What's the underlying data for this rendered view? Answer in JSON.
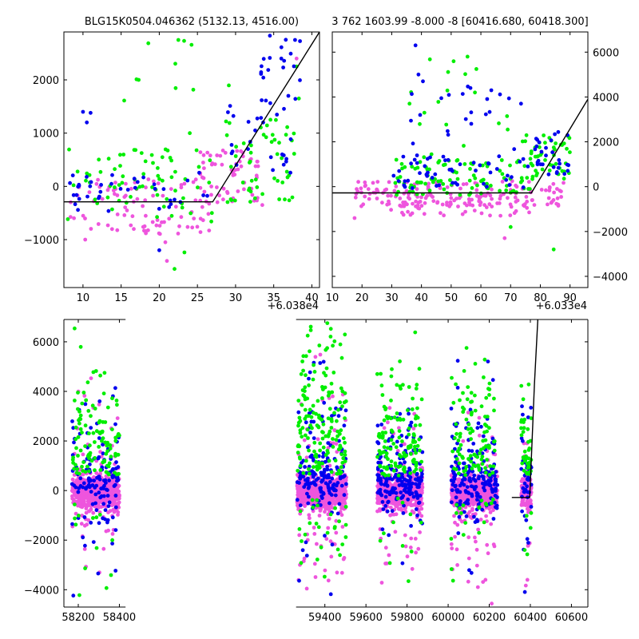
{
  "colors": {
    "green": "#00ee00",
    "blue": "#0000ee",
    "pink": "#ee55dd",
    "model": "#000000"
  },
  "chart_data": [
    {
      "id": "top-left",
      "type": "scatter",
      "title": "BLG15K0504.046362 (5132.13, 4516.00)",
      "x_offset_label": "+6.038e4",
      "xlim": [
        7.5,
        41
      ],
      "ylim": [
        -1900,
        2900
      ],
      "xticks": [
        10,
        15,
        20,
        25,
        30,
        35,
        40
      ],
      "yticks": [
        -1000,
        0,
        1000,
        2000
      ],
      "ytick_side": "left",
      "model_line": [
        [
          7.5,
          -290
        ],
        [
          27,
          -290
        ],
        [
          41,
          2900
        ]
      ],
      "series": [
        {
          "color": "green",
          "seed": 11,
          "count": 130,
          "clusters": [
            {
              "x": [
                8,
                27
              ],
              "y": [
                -700,
                700
              ],
              "w": 0.45
            },
            {
              "x": [
                28,
                38
              ],
              "y": [
                -300,
                1300
              ],
              "w": 0.45
            },
            {
              "x": [
                15,
                30
              ],
              "y": [
                1200,
                2800
              ],
              "w": 0.1
            }
          ],
          "fixed": [
            [
              22.5,
              2750
            ],
            [
              17.3,
              2000
            ],
            [
              24.0,
              1000
            ],
            [
              38.3,
              1650
            ],
            [
              23.3,
              -1240
            ],
            [
              22.0,
              -1550
            ],
            [
              38.0,
              2250
            ]
          ]
        },
        {
          "color": "blue",
          "seed": 23,
          "count": 85,
          "clusters": [
            {
              "x": [
                8,
                27
              ],
              "y": [
                -500,
                300
              ],
              "w": 0.45
            },
            {
              "x": [
                29,
                38
              ],
              "y": [
                200,
                1600
              ],
              "w": 0.4
            },
            {
              "x": [
                33,
                38.5
              ],
              "y": [
                1600,
                2800
              ],
              "w": 0.15
            }
          ],
          "fixed": [
            [
              10.0,
              1400
            ],
            [
              10.5,
              1200
            ],
            [
              11.0,
              1380
            ],
            [
              34.5,
              2830
            ],
            [
              37.8,
              2750
            ],
            [
              36.0,
              2400
            ],
            [
              20.0,
              -1200
            ]
          ]
        },
        {
          "color": "pink",
          "seed": 37,
          "count": 150,
          "clusters": [
            {
              "x": [
                8,
                27
              ],
              "y": [
                -900,
                150
              ],
              "w": 0.6
            },
            {
              "x": [
                25,
                33
              ],
              "y": [
                -300,
                700
              ],
              "w": 0.4
            }
          ],
          "fixed": [
            [
              21.0,
              -1400
            ],
            [
              10.3,
              -1000
            ],
            [
              20.8,
              -1050
            ],
            [
              33.5,
              -350
            ],
            [
              38.0,
              2400
            ]
          ]
        }
      ]
    },
    {
      "id": "top-right",
      "type": "scatter",
      "title": "3 762 1603.99 -8.000 -8 [60416.680, 60418.300]",
      "x_offset_label": "+6.033e4",
      "xlim": [
        10,
        96
      ],
      "ylim": [
        -4500,
        6900
      ],
      "xticks": [
        10,
        20,
        30,
        40,
        50,
        60,
        70,
        80,
        90
      ],
      "yticks": [
        -4000,
        -2000,
        0,
        2000,
        4000,
        6000
      ],
      "ytick_side": "right",
      "model_line": [
        [
          10,
          -280
        ],
        [
          77,
          -280
        ],
        [
          96,
          3900
        ]
      ],
      "series": [
        {
          "color": "green",
          "seed": 41,
          "count": 170,
          "clusters": [
            {
              "x": [
                30,
                77
              ],
              "y": [
                -400,
                1200
              ],
              "w": 0.6
            },
            {
              "x": [
                74,
                90
              ],
              "y": [
                300,
                2300
              ],
              "w": 0.3
            },
            {
              "x": [
                35,
                70
              ],
              "y": [
                1200,
                6000
              ],
              "w": 0.1
            }
          ],
          "fixed": [
            [
              36.0,
              3700
            ],
            [
              41.0,
              3300
            ],
            [
              55.5,
              5800
            ],
            [
              58.0,
              4200
            ],
            [
              84.5,
              -2800
            ],
            [
              70.0,
              -1800
            ]
          ]
        },
        {
          "color": "blue",
          "seed": 53,
          "count": 100,
          "clusters": [
            {
              "x": [
                30,
                78
              ],
              "y": [
                -100,
                1400
              ],
              "w": 0.55
            },
            {
              "x": [
                78,
                90
              ],
              "y": [
                500,
                2600
              ],
              "w": 0.25
            },
            {
              "x": [
                33,
                72
              ],
              "y": [
                1400,
                4500
              ],
              "w": 0.2
            }
          ],
          "fixed": [
            [
              38.0,
              6300
            ],
            [
              39.0,
              5000
            ],
            [
              40.5,
              4700
            ],
            [
              56.5,
              4400
            ],
            [
              63.5,
              4300
            ],
            [
              73.5,
              3700
            ]
          ]
        },
        {
          "color": "pink",
          "seed": 67,
          "count": 210,
          "clusters": [
            {
              "x": [
                17,
                88
              ],
              "y": [
                -900,
                250
              ],
              "w": 0.8
            },
            {
              "x": [
                28,
                78
              ],
              "y": [
                -1300,
                -400
              ],
              "w": 0.2
            }
          ],
          "fixed": [
            [
              17.5,
              -1400
            ],
            [
              68.0,
              -2300
            ],
            [
              84.5,
              1600
            ]
          ]
        }
      ]
    },
    {
      "id": "bottom",
      "type": "scatter",
      "title": "",
      "xlim": [
        58130,
        60680
      ],
      "ylim": [
        -4700,
        6900
      ],
      "xticks": [
        58200,
        58400,
        59400,
        59600,
        59800,
        60000,
        60200,
        60400,
        60600
      ],
      "yticks": [
        -4000,
        -2000,
        0,
        2000,
        4000,
        6000
      ],
      "ytick_side": "left",
      "axis_break": {
        "left_end": 58430,
        "right_start": 59260
      },
      "model_line": [
        [
          60310,
          -280
        ],
        [
          60397,
          -280
        ],
        [
          60420,
          4300
        ],
        [
          60440,
          7500
        ]
      ],
      "seasons": [
        {
          "range": [
            58170,
            58400
          ],
          "green": 120,
          "blue": 130,
          "pink": 650,
          "spread": 4500
        },
        {
          "range": [
            59265,
            59505
          ],
          "green": 190,
          "blue": 170,
          "pink": 750,
          "spread": 6600
        },
        {
          "range": [
            59655,
            59875
          ],
          "green": 140,
          "blue": 200,
          "pink": 700,
          "spread": 4800
        },
        {
          "range": [
            60015,
            60240
          ],
          "green": 120,
          "blue": 190,
          "pink": 680,
          "spread": 5000
        },
        {
          "range": [
            60355,
            60405
          ],
          "green": 45,
          "blue": 45,
          "pink": 120,
          "spread": 4000
        }
      ]
    }
  ]
}
